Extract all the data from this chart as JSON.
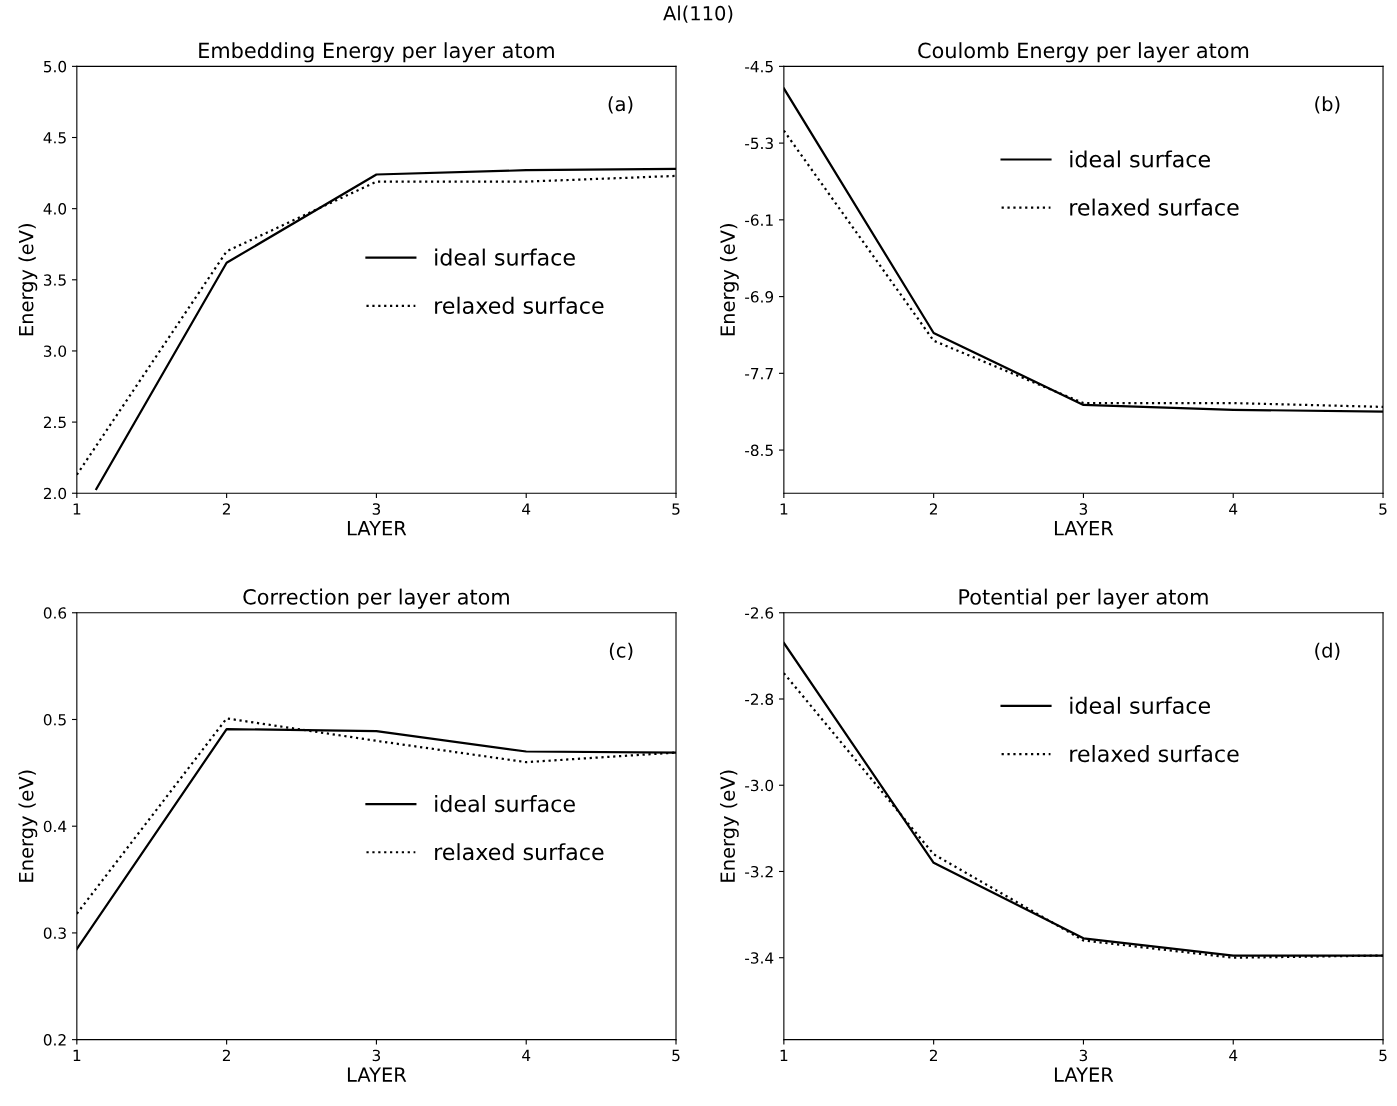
{
  "chart_data": [
    {
      "type": "line",
      "title": "Embedding Energy per layer atom",
      "subtitle": "Al(110)",
      "xlabel": "LAYER",
      "ylabel": "Energy (eV)",
      "x": [
        1,
        2,
        3,
        4,
        5
      ],
      "xlim": [
        1,
        5
      ],
      "xticks": [
        1,
        2,
        3,
        4,
        5
      ],
      "ylim": [
        2.0,
        5.0
      ],
      "yticks": [
        {
          "value": 2,
          "label": "2.0"
        },
        2.5,
        {
          "value": 3,
          "label": "3.0"
        },
        3.5,
        {
          "value": 4,
          "label": "4.0"
        },
        4.5,
        {
          "value": 5,
          "label": "5.0"
        }
      ],
      "legend": "center right",
      "annotations": [
        "(a)"
      ],
      "series": [
        {
          "name": "ideal surface",
          "color": "#000000",
          "line_style": "solid",
          "x": [
            1.13,
            2,
            3,
            4,
            5
          ],
          "values": [
            2.03,
            3.62,
            4.24,
            4.27,
            4.28
          ]
        },
        {
          "name": "relaxed surface",
          "color": "#000000",
          "line_style": "dotted",
          "values": [
            2.13,
            3.7,
            4.19,
            4.19,
            4.23
          ]
        }
      ]
    },
    {
      "type": "line",
      "title": "Coulomb Energy per layer atom",
      "xlabel": "LAYER",
      "ylabel": "Energy (eV)",
      "x": [
        1,
        2,
        3,
        4,
        5
      ],
      "xlim": [
        1,
        5
      ],
      "xticks": [
        1,
        2,
        3,
        4,
        5
      ],
      "ylim": [
        -8.95,
        -4.5
      ],
      "yticks": [
        -8.5,
        -7.7,
        -6.9,
        -6.1,
        -5.3,
        -4.5
      ],
      "legend": "upper right",
      "annotations": [
        "(b)"
      ],
      "series": [
        {
          "name": "ideal surface",
          "color": "#000000",
          "line_style": "solid",
          "values": [
            -4.73,
            -7.28,
            -8.03,
            -8.08,
            -8.1
          ]
        },
        {
          "name": "relaxed surface",
          "color": "#000000",
          "line_style": "dotted",
          "values": [
            -5.17,
            -7.36,
            -8.01,
            -8.01,
            -8.05
          ]
        }
      ]
    },
    {
      "type": "line",
      "title": "Correction per layer atom",
      "xlabel": "LAYER",
      "ylabel": "Energy (eV)",
      "x": [
        1,
        2,
        3,
        4,
        5
      ],
      "xlim": [
        1,
        5
      ],
      "xticks": [
        1,
        2,
        3,
        4,
        5
      ],
      "ylim": [
        0.2,
        0.6
      ],
      "yticks": [
        0.2,
        0.3,
        0.4,
        0.5,
        0.6
      ],
      "legend": "center right",
      "annotations": [
        "(c)"
      ],
      "series": [
        {
          "name": "ideal surface",
          "color": "#000000",
          "line_style": "solid",
          "values": [
            0.285,
            0.491,
            0.489,
            0.47,
            0.469
          ]
        },
        {
          "name": "relaxed surface",
          "color": "#000000",
          "line_style": "dotted",
          "values": [
            0.318,
            0.501,
            0.48,
            0.46,
            0.469
          ]
        }
      ]
    },
    {
      "type": "line",
      "title": "Potential per layer atom",
      "xlabel": "LAYER",
      "ylabel": "Energy (eV)",
      "x": [
        1,
        2,
        3,
        4,
        5
      ],
      "xlim": [
        1,
        5
      ],
      "xticks": [
        1,
        2,
        3,
        4,
        5
      ],
      "ylim": [
        -3.59,
        -2.6
      ],
      "yticks": [
        -3.4,
        -3.2,
        {
          "value": -3,
          "label": "-3.0"
        },
        -2.8,
        -2.6
      ],
      "legend": "upper right",
      "annotations": [
        "(d)"
      ],
      "series": [
        {
          "name": "ideal surface",
          "color": "#000000",
          "line_style": "solid",
          "values": [
            -2.67,
            -3.18,
            -3.355,
            -3.395,
            -3.395
          ]
        },
        {
          "name": "relaxed surface",
          "color": "#000000",
          "line_style": "dotted",
          "values": [
            -2.74,
            -3.16,
            -3.36,
            -3.4,
            -3.395
          ]
        }
      ]
    }
  ]
}
